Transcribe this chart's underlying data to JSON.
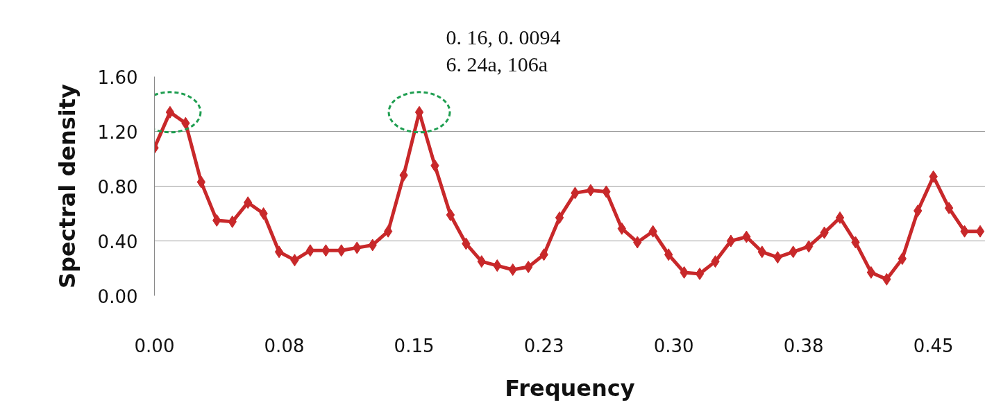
{
  "chart_data": {
    "type": "line",
    "xlabel": "Frequency",
    "ylabel": "Spectral density",
    "x": [
      0,
      0.009,
      0.018,
      0.027,
      0.036,
      0.045,
      0.054,
      0.063,
      0.072,
      0.081,
      0.09,
      0.099,
      0.108,
      0.117,
      0.126,
      0.135,
      0.144,
      0.153,
      0.162,
      0.171,
      0.18,
      0.189,
      0.198,
      0.207,
      0.216,
      0.225,
      0.234,
      0.243,
      0.252,
      0.261,
      0.27,
      0.279,
      0.288,
      0.297,
      0.306,
      0.315,
      0.324,
      0.333,
      0.342,
      0.351,
      0.36,
      0.369,
      0.378,
      0.387,
      0.396,
      0.405,
      0.414,
      0.423,
      0.432,
      0.441,
      0.45,
      0.459,
      0.468,
      0.477
    ],
    "series": [
      {
        "color": "#c8282a",
        "values": [
          1.08,
          1.34,
          1.26,
          0.83,
          0.55,
          0.54,
          0.68,
          0.6,
          0.32,
          0.26,
          0.33,
          0.33,
          0.33,
          0.35,
          0.37,
          0.47,
          0.88,
          1.34,
          0.95,
          0.59,
          0.38,
          0.25,
          0.22,
          0.19,
          0.21,
          0.3,
          0.57,
          0.75,
          0.77,
          0.76,
          0.49,
          0.39,
          0.47,
          0.3,
          0.17,
          0.16,
          0.25,
          0.4,
          0.43,
          0.32,
          0.28,
          0.32,
          0.36,
          0.46,
          0.57,
          0.39,
          0.17,
          0.12,
          0.27,
          0.62,
          0.87,
          0.64,
          0.47,
          0.47
        ]
      }
    ],
    "xlim": [
      0,
      0.48
    ],
    "xticks": [
      {
        "value": 0,
        "label": "0.00"
      },
      {
        "value": 0.075,
        "label": "0.08"
      },
      {
        "value": 0.15,
        "label": "0.15"
      },
      {
        "value": 0.225,
        "label": "0.23"
      },
      {
        "value": 0.3,
        "label": "0.30"
      },
      {
        "value": 0.375,
        "label": "0.38"
      },
      {
        "value": 0.45,
        "label": "0.45"
      }
    ],
    "ylim": [
      0,
      1.6
    ],
    "yticks": [
      {
        "value": 0,
        "label": "0.00"
      },
      {
        "value": 0.4,
        "label": "0.40"
      },
      {
        "value": 0.8,
        "label": "0.80"
      },
      {
        "value": 1.2,
        "label": "1.20"
      },
      {
        "value": 1.6,
        "label": "1.60"
      }
    ],
    "grid": "y",
    "marker": "diamond",
    "line_style": "solid",
    "annotations": [
      "0. 16, 0. 0094",
      "6. 24a, 106a"
    ]
  }
}
